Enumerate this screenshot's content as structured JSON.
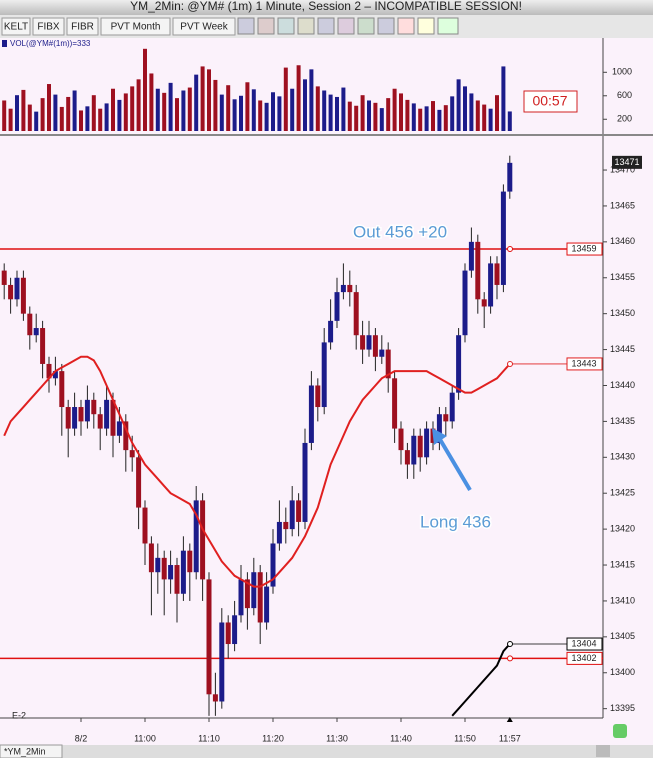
{
  "window": {
    "title": "YM_2Min: @YM# (1m) 1 Minute, Session 2 – INCOMPATIBLE SESSION!",
    "tab": "*YM_2Min"
  },
  "toolbar": {
    "buttons": [
      "KELT",
      "FIBX",
      "FIBR",
      "PVT Month",
      "PVT Week"
    ]
  },
  "volume_label": "VOL(@YM#(1m))=333",
  "timer": "00:57",
  "session_label": "E-2",
  "chart_data": {
    "type": "candlestick",
    "categories": [
      null,
      null,
      null,
      null,
      null,
      null,
      null,
      null,
      null,
      null,
      null,
      null,
      "8/2",
      null,
      null,
      null,
      null,
      null,
      null,
      null,
      null,
      null,
      "11:00",
      null,
      null,
      null,
      null,
      null,
      null,
      null,
      null,
      null,
      "11:10",
      null,
      null,
      null,
      null,
      null,
      null,
      null,
      null,
      null,
      "11:20",
      null,
      null,
      null,
      null,
      null,
      null,
      null,
      null,
      null,
      "11:30",
      null,
      null,
      null,
      null,
      null,
      null,
      null,
      null,
      null,
      "11:40",
      null,
      null,
      null,
      null,
      null,
      null,
      null,
      null,
      null,
      "11:50",
      null,
      null,
      null,
      null,
      null,
      null,
      "11:57"
    ],
    "open": [
      13456,
      13454,
      13452,
      13455,
      13450,
      13447,
      13448,
      13443,
      13441,
      13442,
      13437,
      13434,
      13437,
      13435,
      13438,
      13436,
      13434,
      13438,
      13433,
      13435,
      13431,
      13430,
      13423,
      13418,
      13414,
      13416,
      13413,
      13415,
      13411,
      13417,
      13414,
      13424,
      13413,
      13397,
      13396,
      13407,
      13404,
      13408,
      13413,
      13409,
      13414,
      13407,
      13412,
      13418,
      13421,
      13420,
      13424,
      13421,
      13432,
      13440,
      13437,
      13446,
      13449,
      13453,
      13454,
      13453,
      13447,
      13445,
      13447,
      13444,
      13445,
      13441,
      13434,
      13431,
      13429,
      13433,
      13430,
      13434,
      13432,
      13436,
      13435,
      13439,
      13447,
      13456,
      13460,
      13452,
      13451,
      13457,
      13454,
      13467
    ],
    "high": [
      13457,
      13455,
      13456,
      13456,
      13451,
      13450,
      13449,
      13444,
      13444,
      13443,
      13438,
      13439,
      13438,
      13440,
      13439,
      13437,
      13440,
      13439,
      13437,
      13436,
      13433,
      13431,
      13424,
      13419,
      13418,
      13417,
      13417,
      13416,
      13419,
      13418,
      13426,
      13425,
      13414,
      13400,
      13409,
      13408,
      13410,
      13415,
      13414,
      13416,
      13415,
      13414,
      13420,
      13424,
      13423,
      13426,
      13425,
      13434,
      13442,
      13441,
      13448,
      13452,
      13455,
      13457,
      13456,
      13454,
      13449,
      13449,
      13448,
      13447,
      13446,
      13442,
      13435,
      13432,
      13434,
      13434,
      13435,
      13435,
      13437,
      13437,
      13440,
      13448,
      13457,
      13462,
      13461,
      13453,
      13458,
      13458,
      13468,
      13472
    ],
    "low": [
      13452,
      13450,
      13451,
      13449,
      13445,
      13446,
      13441,
      13439,
      13440,
      13433,
      13430,
      13433,
      13433,
      13434,
      13434,
      13431,
      13433,
      13430,
      13432,
      13428,
      13428,
      13420,
      13415,
      13408,
      13411,
      13408,
      13411,
      13407,
      13410,
      13410,
      13413,
      13410,
      13394,
      13394,
      13395,
      13402,
      13403,
      13407,
      13406,
      13408,
      13404,
      13406,
      13411,
      13417,
      13418,
      13419,
      13419,
      13420,
      13431,
      13435,
      13436,
      13445,
      13448,
      13452,
      13451,
      13445,
      13443,
      13444,
      13442,
      13443,
      13439,
      13432,
      13429,
      13427,
      13427,
      13428,
      13429,
      13431,
      13431,
      13433,
      13434,
      13438,
      13446,
      13455,
      13450,
      13448,
      13450,
      13452,
      13453,
      13466
    ],
    "close": [
      13454,
      13452,
      13455,
      13450,
      13447,
      13448,
      13443,
      13441,
      13442,
      13437,
      13434,
      13437,
      13435,
      13438,
      13436,
      13434,
      13438,
      13433,
      13435,
      13431,
      13430,
      13423,
      13418,
      13414,
      13416,
      13413,
      13415,
      13411,
      13417,
      13414,
      13424,
      13413,
      13397,
      13396,
      13407,
      13404,
      13408,
      13413,
      13409,
      13414,
      13407,
      13412,
      13418,
      13421,
      13420,
      13424,
      13421,
      13432,
      13440,
      13437,
      13446,
      13449,
      13453,
      13454,
      13453,
      13447,
      13445,
      13447,
      13444,
      13445,
      13441,
      13434,
      13431,
      13429,
      13433,
      13430,
      13434,
      13432,
      13436,
      13435,
      13439,
      13447,
      13456,
      13460,
      13452,
      13451,
      13457,
      13454,
      13467,
      13471
    ],
    "up_color": "#1c1c8a",
    "down_color": "#9e1020",
    "volume": [
      520,
      380,
      610,
      700,
      450,
      330,
      560,
      800,
      620,
      410,
      580,
      690,
      350,
      420,
      610,
      380,
      470,
      720,
      530,
      640,
      760,
      880,
      1400,
      980,
      720,
      650,
      820,
      560,
      690,
      740,
      960,
      1100,
      1050,
      870,
      620,
      780,
      540,
      600,
      830,
      710,
      520,
      480,
      660,
      590,
      1080,
      720,
      1120,
      880,
      1050,
      760,
      690,
      620,
      580,
      740,
      500,
      430,
      610,
      520,
      480,
      390,
      560,
      720,
      640,
      530,
      470,
      380,
      420,
      510,
      360,
      440,
      590,
      880,
      760,
      640,
      520,
      450,
      380,
      610,
      1100,
      333
    ],
    "volume_ylim": [
      0,
      1550
    ],
    "volume_yticks": [
      200,
      600,
      1000
    ],
    "ma": {
      "color": "#e02020",
      "values": [
        13433,
        13435,
        13436,
        13437,
        13438,
        13439,
        13440,
        13441,
        13442,
        13442.5,
        13443,
        13443.5,
        13444,
        13444,
        13443.5,
        13442,
        13440,
        13438,
        13436,
        13434,
        13432,
        13430.5,
        13429,
        13428,
        13427,
        13426,
        13425,
        13424.5,
        13424,
        13423.5,
        13422,
        13420,
        13418.5,
        13417,
        13415.5,
        13414.5,
        13413.5,
        13413,
        13412.5,
        13412,
        13412,
        13412.5,
        13413,
        13414,
        13415,
        13416,
        13417.5,
        13419,
        13421,
        13423,
        13426,
        13429,
        13431,
        13433,
        13435,
        13436.5,
        13438,
        13439,
        13440,
        13441,
        13441.5,
        13442,
        13442,
        13442,
        13442,
        13442,
        13442,
        13441.5,
        13441,
        13440.5,
        13440,
        13439.5,
        13439,
        13439,
        13439.5,
        13440,
        13440.5,
        13441,
        13442,
        13443
      ]
    },
    "trend": {
      "color": "#000000",
      "values": [
        null,
        null,
        null,
        null,
        null,
        null,
        null,
        null,
        null,
        null,
        null,
        null,
        null,
        null,
        null,
        null,
        null,
        null,
        null,
        null,
        null,
        null,
        null,
        null,
        null,
        null,
        null,
        null,
        null,
        null,
        null,
        null,
        null,
        null,
        null,
        null,
        null,
        null,
        null,
        null,
        null,
        null,
        null,
        null,
        null,
        null,
        null,
        null,
        null,
        null,
        null,
        null,
        null,
        null,
        null,
        null,
        null,
        null,
        null,
        null,
        null,
        null,
        null,
        null,
        null,
        null,
        null,
        null,
        null,
        null,
        13394,
        13395,
        13396,
        13397,
        13398,
        13399,
        13400,
        13401,
        13403,
        13404
      ]
    },
    "levels": [
      {
        "value": 13459,
        "color": "#e01010"
      },
      {
        "value": 13402,
        "color": "#e01010"
      }
    ],
    "ylim": [
      13393.7,
      13474.6
    ],
    "yticks": [
      13395,
      13400,
      13405,
      13410,
      13415,
      13420,
      13425,
      13430,
      13435,
      13440,
      13445,
      13450,
      13455,
      13460,
      13465,
      13470
    ],
    "annotations": [
      "Out 456 +20",
      "Long 436"
    ]
  }
}
